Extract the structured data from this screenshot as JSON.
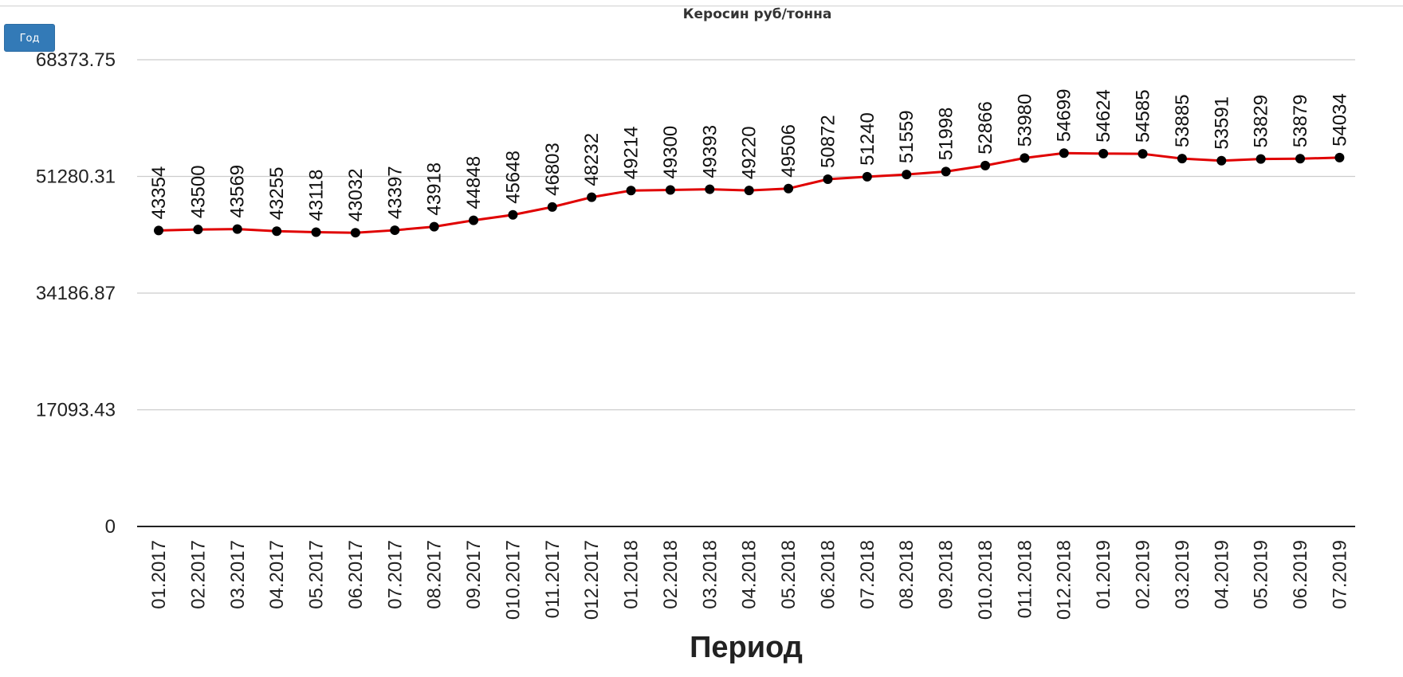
{
  "controls": {
    "period_button_label": "Год"
  },
  "colors": {
    "line": "#e00000",
    "marker": "#000000",
    "grid": "#cccccc",
    "axis": "#222222",
    "button": "#337ab7"
  },
  "chart_data": {
    "type": "line",
    "title": "Керосин руб/тонна",
    "xlabel": "Период",
    "ylabel": "",
    "ylim": [
      0,
      68373.75
    ],
    "yticks": [
      0,
      17093.43,
      34186.87,
      51280.31,
      68373.75
    ],
    "ytick_labels": [
      "0",
      "17093.43",
      "34186.87",
      "51280.31",
      "68373.75"
    ],
    "grid": true,
    "categories": [
      "01.2017",
      "02.2017",
      "03.2017",
      "04.2017",
      "05.2017",
      "06.2017",
      "07.2017",
      "08.2017",
      "09.2017",
      "010.2017",
      "011.2017",
      "012.2017",
      "01.2018",
      "02.2018",
      "03.2018",
      "04.2018",
      "05.2018",
      "06.2018",
      "07.2018",
      "08.2018",
      "09.2018",
      "010.2018",
      "011.2018",
      "012.2018",
      "01.2019",
      "02.2019",
      "03.2019",
      "04.2019",
      "05.2019",
      "06.2019",
      "07.2019"
    ],
    "series": [
      {
        "values": [
          43354,
          43500,
          43569,
          43255,
          43118,
          43032,
          43397,
          43918,
          44848,
          45648,
          46803,
          48232,
          49214,
          49300,
          49393,
          49220,
          49506,
          50872,
          51240,
          51559,
          51998,
          52866,
          53980,
          54699,
          54624,
          54585,
          53885,
          53591,
          53829,
          53879,
          54034
        ]
      }
    ]
  }
}
